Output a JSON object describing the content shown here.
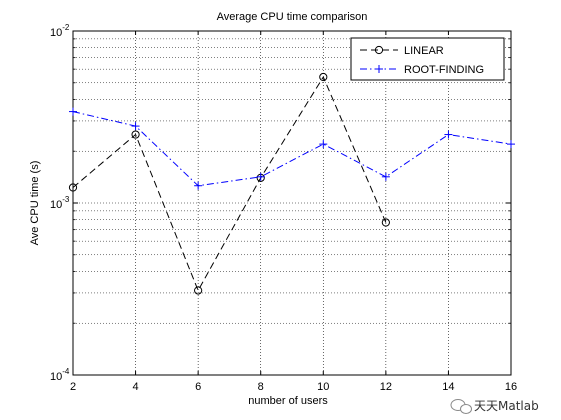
{
  "chart_data": {
    "type": "line",
    "title": "Average CPU time comparison",
    "xlabel": "number of users",
    "ylabel": "Ave CPU time (s)",
    "x_ticks": [
      "2",
      "4",
      "6",
      "8",
      "10",
      "12",
      "14",
      "16"
    ],
    "y_ticks": [
      {
        "base": "10",
        "exp": "-2"
      },
      {
        "base": "10",
        "exp": "-3"
      },
      {
        "base": "10",
        "exp": "-4"
      }
    ],
    "xlim": [
      2,
      16
    ],
    "ylim": [
      0.0001,
      0.01
    ],
    "yscale": "log",
    "grid": true,
    "legend_position": "top-right",
    "series": [
      {
        "name": "LINEAR",
        "color": "#000000",
        "linestyle": "dashed",
        "marker": "circle",
        "x": [
          2,
          4,
          6,
          8,
          10,
          12
        ],
        "y": [
          0.00123,
          0.0025,
          0.00031,
          0.0014,
          0.0054,
          0.00077
        ]
      },
      {
        "name": "ROOT-FINDING",
        "color": "#0000ff",
        "linestyle": "dashdot",
        "marker": "plus",
        "x": [
          2,
          4,
          6,
          8,
          10,
          12,
          14,
          16
        ],
        "y": [
          0.0034,
          0.0028,
          0.00126,
          0.00142,
          0.0022,
          0.00142,
          0.0025,
          0.0022
        ]
      }
    ]
  },
  "watermark": {
    "text": "天天Matlab",
    "icon": "wechat-logo-icon"
  }
}
